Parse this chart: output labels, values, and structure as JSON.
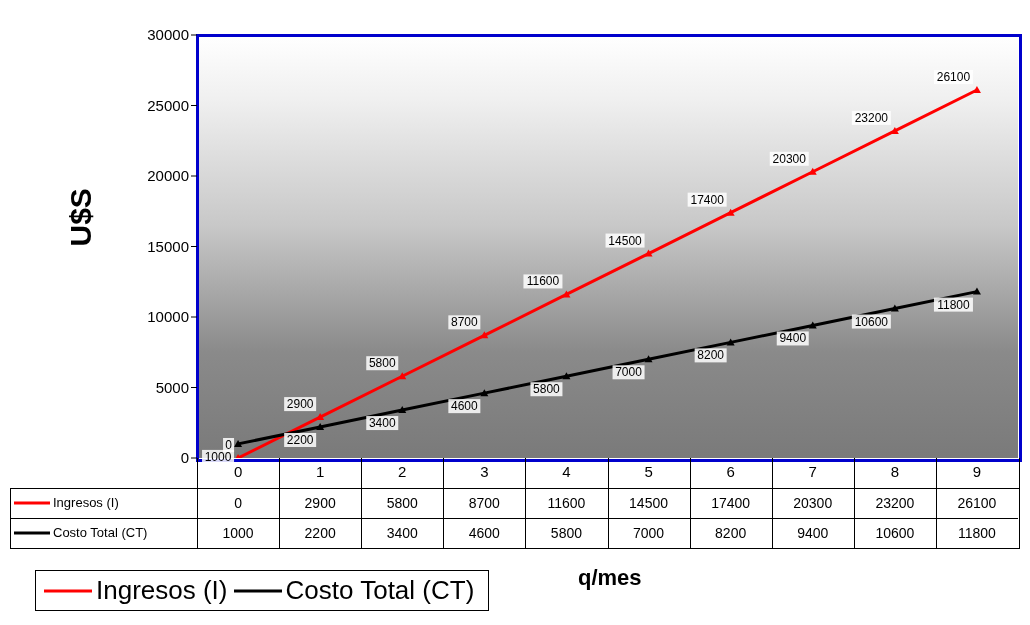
{
  "chart_data": {
    "type": "line",
    "ylabel": "U$S",
    "xlabel": "q/mes",
    "categories": [
      "0",
      "1",
      "2",
      "3",
      "4",
      "5",
      "6",
      "7",
      "8",
      "9"
    ],
    "series": [
      {
        "name": "Ingresos (I)",
        "color": "#ff0000",
        "values": [
          0,
          2900,
          5800,
          8700,
          11600,
          14500,
          17400,
          20300,
          23200,
          26100
        ]
      },
      {
        "name": "Costo Total (CT)",
        "color": "#000000",
        "values": [
          1000,
          2200,
          3400,
          4600,
          5800,
          7000,
          8200,
          9400,
          10600,
          11800
        ]
      }
    ],
    "annotations": [
      {
        "text": "0",
        "x": "0",
        "y": 0
      },
      {
        "text": "2900",
        "x": "1",
        "y": 2900
      },
      {
        "text": "5800",
        "x": "2",
        "y": 5800
      },
      {
        "text": "8700",
        "x": "3",
        "y": 8700
      },
      {
        "text": "11600",
        "x": "4",
        "y": 11600
      },
      {
        "text": "14500",
        "x": "5",
        "y": 14500
      },
      {
        "text": "17400",
        "x": "6",
        "y": 17400
      },
      {
        "text": "20300",
        "x": "7",
        "y": 20300
      },
      {
        "text": "23200",
        "x": "8",
        "y": 23200
      },
      {
        "text": "26100",
        "x": "9",
        "y": 26100
      },
      {
        "text": "1000",
        "x": "0",
        "y": 1000
      },
      {
        "text": "2200",
        "x": "1",
        "y": 2200
      },
      {
        "text": "3400",
        "x": "2",
        "y": 3400
      },
      {
        "text": "4600",
        "x": "3",
        "y": 4600
      },
      {
        "text": "5800",
        "x": "4",
        "y": 5800
      },
      {
        "text": "7000",
        "x": "5",
        "y": 7000
      },
      {
        "text": "8200",
        "x": "6",
        "y": 8200
      },
      {
        "text": "9400",
        "x": "7",
        "y": 9400
      },
      {
        "text": "10600",
        "x": "8",
        "y": 10600
      },
      {
        "text": "11800",
        "x": "9",
        "y": 11800
      }
    ],
    "ylim": [
      0,
      30000
    ],
    "yticks": [
      0,
      5000,
      10000,
      15000,
      20000,
      25000,
      30000
    ],
    "grid": false,
    "legend": "bottom left",
    "marker": "triangle",
    "data_labels": true
  }
}
